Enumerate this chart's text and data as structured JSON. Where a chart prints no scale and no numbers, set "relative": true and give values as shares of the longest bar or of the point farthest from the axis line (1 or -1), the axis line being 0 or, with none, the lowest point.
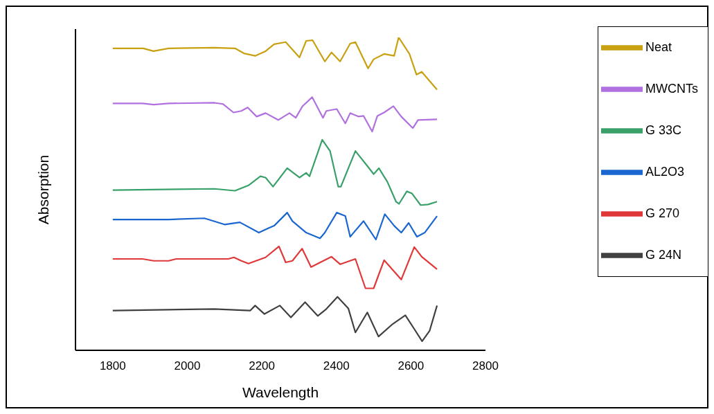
{
  "chart_data": {
    "type": "line",
    "xlabel": "Wavelength",
    "ylabel": "Absorption",
    "relative": true,
    "xlim": [
      1700,
      2800
    ],
    "xticks": [
      1800,
      2000,
      2200,
      2400,
      2600,
      2800
    ],
    "grid": false,
    "legend": "top right",
    "marker": "none",
    "line_style": "solid",
    "series": [
      {
        "name": "Neat",
        "color": "#c8a010",
        "x": [
          1800,
          1866,
          1882,
          1909,
          1950,
          2073,
          2128,
          2152,
          2182,
          2210,
          2233,
          2264,
          2301,
          2319,
          2336,
          2369,
          2387,
          2410,
          2437,
          2451,
          2485,
          2500,
          2528,
          2555,
          2567,
          2596,
          2615,
          2629,
          2670
        ],
        "values": [
          0.965,
          0.965,
          0.965,
          0.956,
          0.965,
          0.967,
          0.965,
          0.949,
          0.941,
          0.956,
          0.978,
          0.985,
          0.936,
          0.989,
          0.991,
          0.923,
          0.952,
          0.923,
          0.98,
          0.985,
          0.901,
          0.93,
          0.947,
          0.941,
          1,
          0.947,
          0.881,
          0.89,
          0.833
        ]
      },
      {
        "name": "MWCNTs",
        "color": "#b070e0",
        "x": [
          1800,
          1880,
          1910,
          1950,
          2073,
          2096,
          2124,
          2145,
          2162,
          2186,
          2210,
          2244,
          2274,
          2291,
          2309,
          2335,
          2364,
          2373,
          2401,
          2424,
          2437,
          2459,
          2473,
          2496,
          2510,
          2528,
          2553,
          2574,
          2605,
          2619,
          2670
        ],
        "values": [
          0.789,
          0.789,
          0.785,
          0.789,
          0.791,
          0.787,
          0.76,
          0.765,
          0.776,
          0.747,
          0.758,
          0.736,
          0.758,
          0.743,
          0.78,
          0.809,
          0.743,
          0.765,
          0.771,
          0.725,
          0.758,
          0.747,
          0.749,
          0.699,
          0.749,
          0.76,
          0.78,
          0.747,
          0.71,
          0.736,
          0.738
        ]
      },
      {
        "name": "G 33C",
        "color": "#3aa06a",
        "x": [
          1800,
          2073,
          2128,
          2164,
          2196,
          2210,
          2230,
          2268,
          2301,
          2319,
          2328,
          2362,
          2383,
          2405,
          2412,
          2451,
          2483,
          2500,
          2514,
          2537,
          2560,
          2568,
          2589,
          2603,
          2626,
          2646,
          2670
        ],
        "values": [
          0.512,
          0.516,
          0.51,
          0.527,
          0.556,
          0.552,
          0.523,
          0.582,
          0.552,
          0.567,
          0.556,
          0.673,
          0.637,
          0.523,
          0.523,
          0.637,
          0.589,
          0.563,
          0.582,
          0.538,
          0.475,
          0.468,
          0.508,
          0.501,
          0.464,
          0.466,
          0.475
        ]
      },
      {
        "name": "AL2O3",
        "color": "#1a66d0",
        "x": [
          1800,
          1950,
          2046,
          2100,
          2141,
          2192,
          2219,
          2233,
          2268,
          2282,
          2319,
          2356,
          2369,
          2401,
          2424,
          2437,
          2473,
          2506,
          2530,
          2555,
          2574,
          2594,
          2616,
          2637,
          2670
        ],
        "values": [
          0.418,
          0.418,
          0.422,
          0.402,
          0.409,
          0.376,
          0.391,
          0.398,
          0.44,
          0.413,
          0.376,
          0.358,
          0.376,
          0.44,
          0.429,
          0.363,
          0.413,
          0.354,
          0.435,
          0.398,
          0.376,
          0.407,
          0.363,
          0.376,
          0.429
        ]
      },
      {
        "name": "G 270",
        "color": "#e03838",
        "x": [
          1800,
          1880,
          1910,
          1950,
          1970,
          2110,
          2125,
          2145,
          2164,
          2210,
          2246,
          2264,
          2282,
          2308,
          2332,
          2387,
          2410,
          2451,
          2478,
          2500,
          2528,
          2574,
          2609,
          2629,
          2670
        ],
        "values": [
          0.292,
          0.292,
          0.286,
          0.286,
          0.292,
          0.292,
          0.297,
          0.286,
          0.277,
          0.297,
          0.332,
          0.281,
          0.286,
          0.325,
          0.266,
          0.299,
          0.275,
          0.292,
          0.198,
          0.198,
          0.288,
          0.226,
          0.33,
          0.299,
          0.259
        ]
      },
      {
        "name": "G 24N",
        "color": "#404040",
        "x": [
          1800,
          2073,
          2169,
          2182,
          2207,
          2248,
          2278,
          2316,
          2350,
          2373,
          2403,
          2432,
          2451,
          2483,
          2513,
          2551,
          2585,
          2609,
          2630,
          2650,
          2670
        ],
        "values": [
          0.127,
          0.132,
          0.127,
          0.143,
          0.116,
          0.143,
          0.105,
          0.154,
          0.11,
          0.132,
          0.171,
          0.134,
          0.057,
          0.121,
          0.044,
          0.084,
          0.112,
          0.068,
          0.029,
          0.062,
          0.143
        ]
      }
    ]
  }
}
